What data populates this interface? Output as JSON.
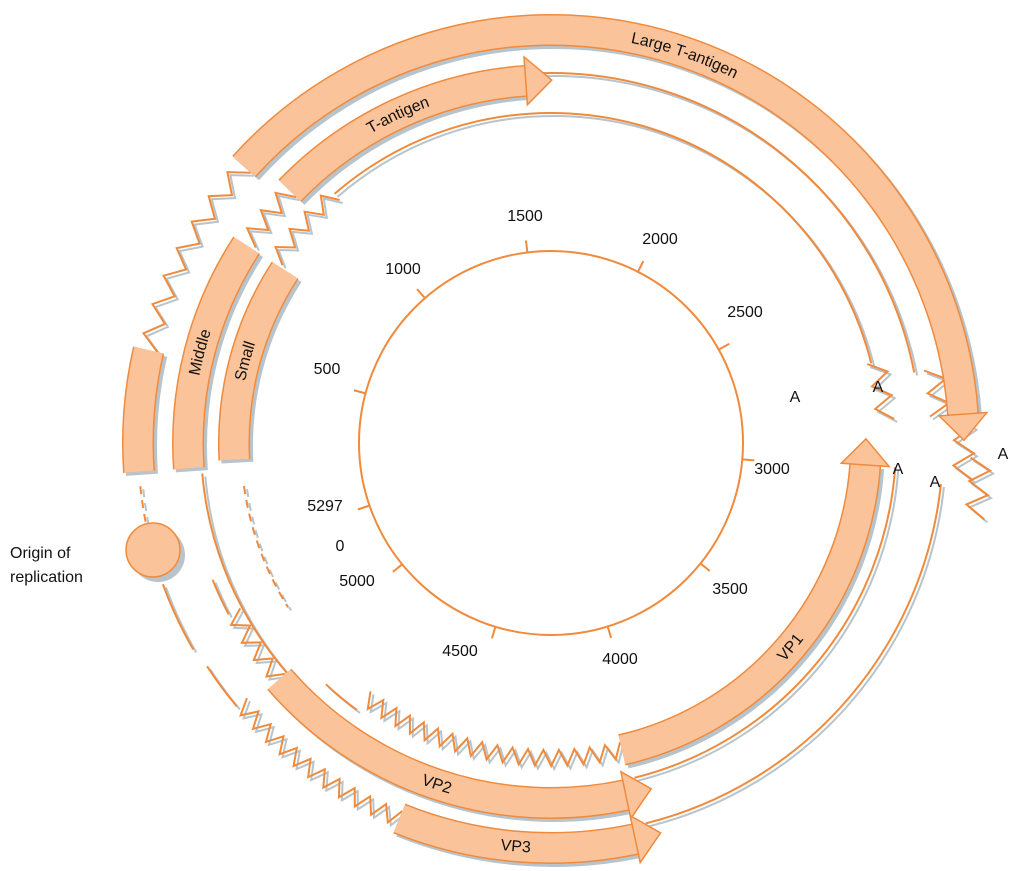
{
  "scale": {
    "ticks": [
      500,
      1000,
      1500,
      2000,
      2500,
      3000,
      3500,
      4000,
      4500,
      5000,
      5297,
      0
    ]
  },
  "genes": {
    "large_t": "Large T-antigen",
    "t": "T-antigen",
    "middle": "Middle",
    "small": "Small",
    "vp1": "VP1",
    "vp2": "VP2",
    "vp3": "VP3"
  },
  "poly_a": [
    "A",
    "A",
    "A",
    "A",
    "A"
  ],
  "origin": [
    "Origin of",
    "replication"
  ]
}
